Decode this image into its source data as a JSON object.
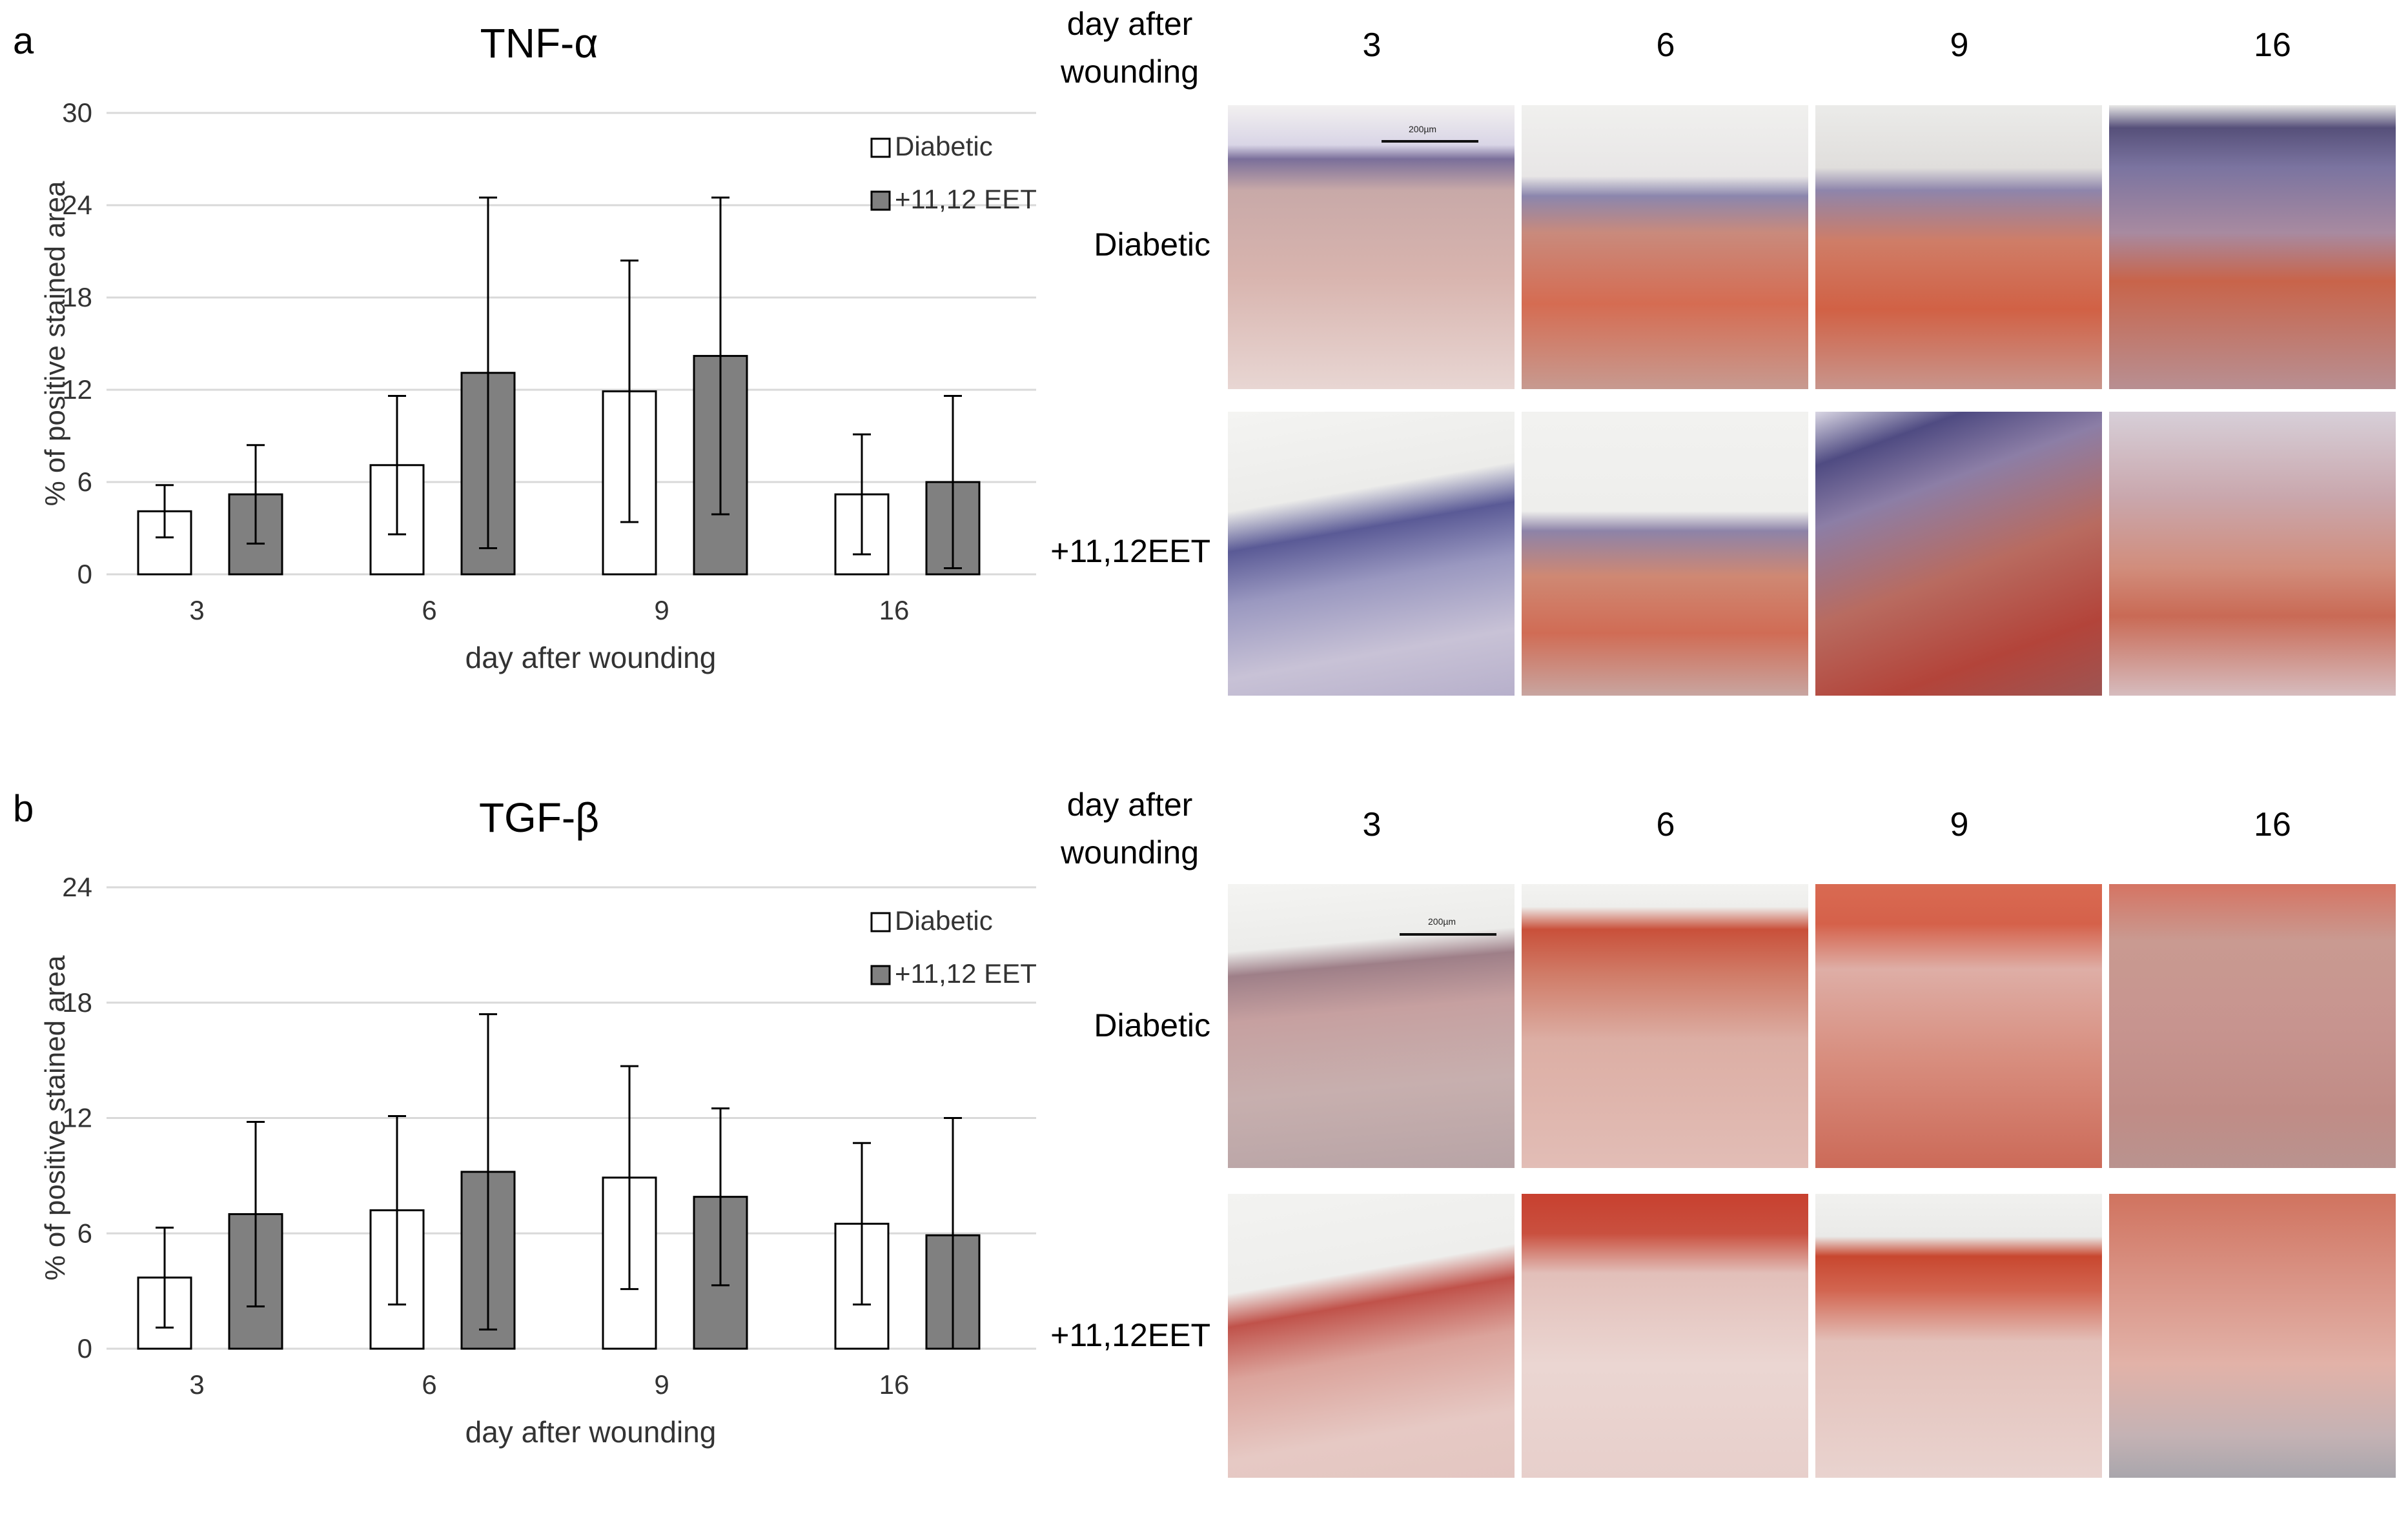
{
  "panels": [
    {
      "letter": "a",
      "title": "TNF-α",
      "chart_data": {
        "type": "bar",
        "title": "TNF-α",
        "xlabel": "day after wounding",
        "ylabel": "% of positive stained area",
        "categories": [
          "3",
          "6",
          "9",
          "16"
        ],
        "yticks": [
          "0",
          "6",
          "12",
          "18",
          "24",
          "30"
        ],
        "ylim": [
          0,
          30
        ],
        "grid": true,
        "legend_position": "top-right",
        "error_bars": true,
        "series": [
          {
            "name": "Diabetic",
            "color": "#ffffff",
            "values": [
              4.1,
              7.1,
              11.9,
              5.2
            ],
            "errors": [
              1.7,
              4.5,
              8.5,
              3.9
            ]
          },
          {
            "name": "+11,12 EET",
            "color": "#808080",
            "values": [
              5.2,
              13.1,
              14.2,
              6.0
            ],
            "errors": [
              3.2,
              11.4,
              10.3,
              5.6
            ]
          }
        ]
      },
      "images": {
        "corner_label": [
          "day after",
          "wounding"
        ],
        "columns": [
          "3",
          "6",
          "9",
          "16"
        ],
        "rows": [
          "Diabetic",
          "+11,12EET"
        ],
        "scale_label": "200µm"
      }
    },
    {
      "letter": "b",
      "title": "TGF-β",
      "chart_data": {
        "type": "bar",
        "title": "TGF-β",
        "xlabel": "day after wounding",
        "ylabel": "% of positive stained area",
        "categories": [
          "3",
          "6",
          "9",
          "16"
        ],
        "yticks": [
          "0",
          "6",
          "12",
          "18",
          "24"
        ],
        "ylim": [
          0,
          24
        ],
        "grid": true,
        "legend_position": "top-right",
        "error_bars": true,
        "series": [
          {
            "name": "Diabetic",
            "color": "#ffffff",
            "values": [
              3.7,
              7.2,
              8.9,
              6.5
            ],
            "errors": [
              2.6,
              4.9,
              5.8,
              4.2
            ]
          },
          {
            "name": "+11,12 EET",
            "color": "#808080",
            "values": [
              7.0,
              9.2,
              7.9,
              5.9
            ],
            "errors": [
              4.8,
              8.2,
              4.6,
              6.1
            ]
          }
        ]
      },
      "images": {
        "corner_label": [
          "day after",
          "wounding"
        ],
        "columns": [
          "3",
          "6",
          "9",
          "16"
        ],
        "rows": [
          "Diabetic",
          "+11,12EET"
        ],
        "scale_label": "200µm"
      }
    }
  ]
}
